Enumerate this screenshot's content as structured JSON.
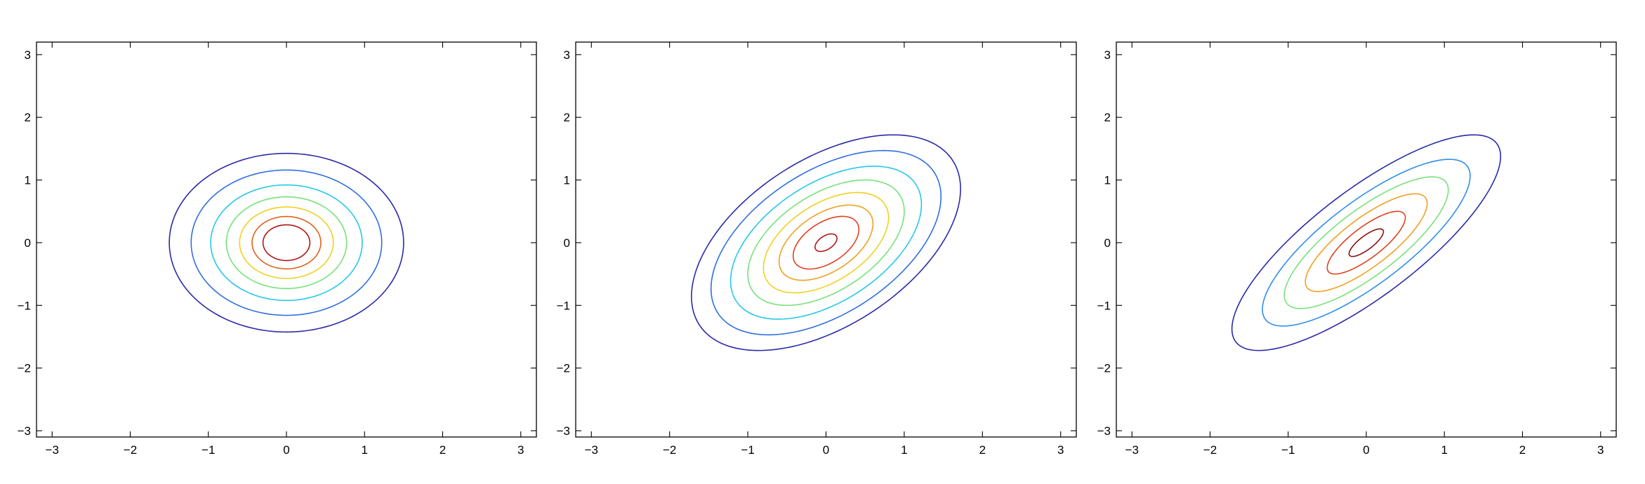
{
  "chart_data": [
    {
      "type": "contour",
      "title": "",
      "xlabel": "",
      "ylabel": "",
      "xlim": [
        -3.2,
        3.2
      ],
      "ylim": [
        -3.1,
        3.2
      ],
      "xticks": [
        -3,
        -2,
        -1,
        0,
        1,
        2,
        3
      ],
      "yticks": [
        -3,
        -2,
        -1,
        0,
        1,
        2,
        3
      ],
      "grid": false,
      "distribution": {
        "mean": [
          0,
          0
        ],
        "sigma_x": 1.0,
        "sigma_y": 0.95,
        "correlation": 0.0
      },
      "levels": [
        {
          "r": 1.5,
          "color": "#2a2aa8"
        },
        {
          "r": 1.22,
          "color": "#2f6fe0"
        },
        {
          "r": 0.97,
          "color": "#25c8e8"
        },
        {
          "r": 0.77,
          "color": "#77e27a"
        },
        {
          "r": 0.6,
          "color": "#f0d020"
        },
        {
          "r": 0.44,
          "color": "#e0601f"
        },
        {
          "r": 0.3,
          "color": "#b01515"
        }
      ]
    },
    {
      "type": "contour",
      "title": "",
      "xlabel": "",
      "ylabel": "",
      "xlim": [
        -3.2,
        3.2
      ],
      "ylim": [
        -3.1,
        3.2
      ],
      "xticks": [
        -3,
        -2,
        -1,
        0,
        1,
        2,
        3
      ],
      "yticks": [
        -3,
        -2,
        -1,
        0,
        1,
        2,
        3
      ],
      "grid": false,
      "distribution": {
        "mean": [
          0,
          0
        ],
        "sigma_x": 1.0,
        "sigma_y": 1.0,
        "correlation": 0.5
      },
      "levels": [
        {
          "r": 1.72,
          "color": "#2a2aa8"
        },
        {
          "r": 1.47,
          "color": "#2f6fe0"
        },
        {
          "r": 1.22,
          "color": "#25c8e8"
        },
        {
          "r": 1.0,
          "color": "#77e27a"
        },
        {
          "r": 0.8,
          "color": "#f0d020"
        },
        {
          "r": 0.6,
          "color": "#f0a020"
        },
        {
          "r": 0.42,
          "color": "#e0401f"
        },
        {
          "r": 0.14,
          "color": "#b01515"
        }
      ]
    },
    {
      "type": "contour",
      "title": "",
      "xlabel": "",
      "ylabel": "",
      "xlim": [
        -3.2,
        3.2
      ],
      "ylim": [
        -3.1,
        3.2
      ],
      "xticks": [
        -3,
        -2,
        -1,
        0,
        1,
        2,
        3
      ],
      "yticks": [
        -3,
        -2,
        -1,
        0,
        1,
        2,
        3
      ],
      "grid": false,
      "distribution": {
        "mean": [
          0,
          0
        ],
        "sigma_x": 1.0,
        "sigma_y": 1.0,
        "correlation": 0.8
      },
      "levels": [
        {
          "r": 1.72,
          "color": "#2a2aa8"
        },
        {
          "r": 1.33,
          "color": "#2f8ee8"
        },
        {
          "r": 1.05,
          "color": "#77e27a"
        },
        {
          "r": 0.78,
          "color": "#f0a020"
        },
        {
          "r": 0.5,
          "color": "#e0401f"
        },
        {
          "r": 0.22,
          "color": "#8a0f0f"
        }
      ]
    }
  ]
}
